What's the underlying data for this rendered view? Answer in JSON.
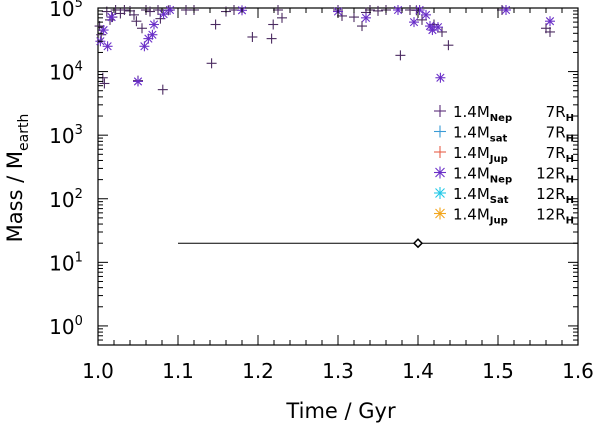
{
  "chart_data": {
    "type": "scatter",
    "title": "",
    "xlabel": "Time / Gyr",
    "ylabel": {
      "main": "Mass / M",
      "sub": "earth"
    },
    "xlim": [
      1.0,
      1.6
    ],
    "ylim_log10": [
      -0.3,
      5.0
    ],
    "x_ticks": [
      "1.0",
      "1.1",
      "1.2",
      "1.3",
      "1.4",
      "1.5",
      "1.6"
    ],
    "x_tick_values": [
      1.0,
      1.1,
      1.2,
      1.3,
      1.4,
      1.5,
      1.6
    ],
    "y_ticks": [
      {
        "base": "10",
        "exp": "0",
        "log": 0
      },
      {
        "base": "10",
        "exp": "1",
        "log": 1
      },
      {
        "base": "10",
        "exp": "2",
        "log": 2
      },
      {
        "base": "10",
        "exp": "3",
        "log": 3
      },
      {
        "base": "10",
        "exp": "4",
        "log": 4
      },
      {
        "base": "10",
        "exp": "5",
        "log": 5
      }
    ],
    "legend": [
      {
        "prefix": "1.4M",
        "sub": "Nep",
        "radius": "7R",
        "rsub": "H",
        "marker": "plus",
        "color": "#5b2d7a"
      },
      {
        "prefix": "1.4M",
        "sub": "sat",
        "radius": "7R",
        "rsub": "H",
        "marker": "plus",
        "color": "#3a9bd6"
      },
      {
        "prefix": "1.4M",
        "sub": "Jup",
        "radius": "7R",
        "rsub": "H",
        "marker": "plus",
        "color": "#e8604a"
      },
      {
        "prefix": "1.4M",
        "sub": "Nep",
        "radius": "12R",
        "rsub": "H",
        "marker": "star",
        "color": "#6a2fc8"
      },
      {
        "prefix": "1.4M",
        "sub": "Sat",
        "radius": "12R",
        "rsub": "H",
        "marker": "star",
        "color": "#22c8e6"
      },
      {
        "prefix": "1.4M",
        "sub": "Jup",
        "radius": "12R",
        "rsub": "H",
        "marker": "star",
        "color": "#f2a51c"
      }
    ],
    "reference": {
      "x": 1.4,
      "y": 20,
      "xerr_low": 1.1,
      "xerr_high": 1.6,
      "marker": "diamond"
    },
    "series": [
      {
        "name": "1.4M_Nep 7R_H",
        "marker": "plus",
        "color": "#4a2a60",
        "points": [
          [
            1.002,
            52000
          ],
          [
            1.004,
            38000
          ],
          [
            1.006,
            8000
          ],
          [
            1.008,
            6500
          ],
          [
            1.011,
            88000
          ],
          [
            1.015,
            65000
          ],
          [
            1.018,
            72000
          ],
          [
            1.022,
            100000
          ],
          [
            1.028,
            82000
          ],
          [
            1.033,
            96000
          ],
          [
            1.04,
            90000
          ],
          [
            1.045,
            78000
          ],
          [
            1.048,
            62000
          ],
          [
            1.05,
            7200
          ],
          [
            1.055,
            48000
          ],
          [
            1.06,
            95000
          ],
          [
            1.065,
            88000
          ],
          [
            1.075,
            98000
          ],
          [
            1.078,
            68000
          ],
          [
            1.081,
            5200
          ],
          [
            1.088,
            92000
          ],
          [
            1.11,
            98000
          ],
          [
            1.12,
            97000
          ],
          [
            1.142,
            13500
          ],
          [
            1.147,
            55000
          ],
          [
            1.16,
            88000
          ],
          [
            1.17,
            96000
          ],
          [
            1.193,
            35000
          ],
          [
            1.217,
            33000
          ],
          [
            1.219,
            55000
          ],
          [
            1.225,
            96000
          ],
          [
            1.23,
            70000
          ],
          [
            1.3,
            97000
          ],
          [
            1.305,
            75000
          ],
          [
            1.32,
            72000
          ],
          [
            1.33,
            52000
          ],
          [
            1.335,
            85000
          ],
          [
            1.34,
            100000
          ],
          [
            1.35,
            90000
          ],
          [
            1.36,
            97000
          ],
          [
            1.378,
            18000
          ],
          [
            1.39,
            100000
          ],
          [
            1.398,
            92000
          ],
          [
            1.405,
            65000
          ],
          [
            1.42,
            55000
          ],
          [
            1.43,
            42000
          ],
          [
            1.438,
            26000
          ],
          [
            1.505,
            99000
          ],
          [
            1.56,
            48000
          ],
          [
            1.565,
            42000
          ]
        ]
      },
      {
        "name": "1.4M_Nep 12R_H",
        "marker": "star",
        "color": "#6a2fc8",
        "points": [
          [
            1.003,
            30000
          ],
          [
            1.007,
            45000
          ],
          [
            1.012,
            25000
          ],
          [
            1.017,
            72000
          ],
          [
            1.05,
            7000
          ],
          [
            1.058,
            25000
          ],
          [
            1.063,
            33000
          ],
          [
            1.068,
            38000
          ],
          [
            1.07,
            55000
          ],
          [
            1.082,
            80000
          ],
          [
            1.09,
            100000
          ],
          [
            1.18,
            92000
          ],
          [
            1.3,
            88000
          ],
          [
            1.335,
            70000
          ],
          [
            1.375,
            95000
          ],
          [
            1.395,
            60000
          ],
          [
            1.402,
            96000
          ],
          [
            1.41,
            78000
          ],
          [
            1.415,
            52000
          ],
          [
            1.418,
            45000
          ],
          [
            1.425,
            50000
          ],
          [
            1.428,
            8000
          ],
          [
            1.51,
            100000
          ],
          [
            1.565,
            62000
          ]
        ]
      }
    ]
  }
}
